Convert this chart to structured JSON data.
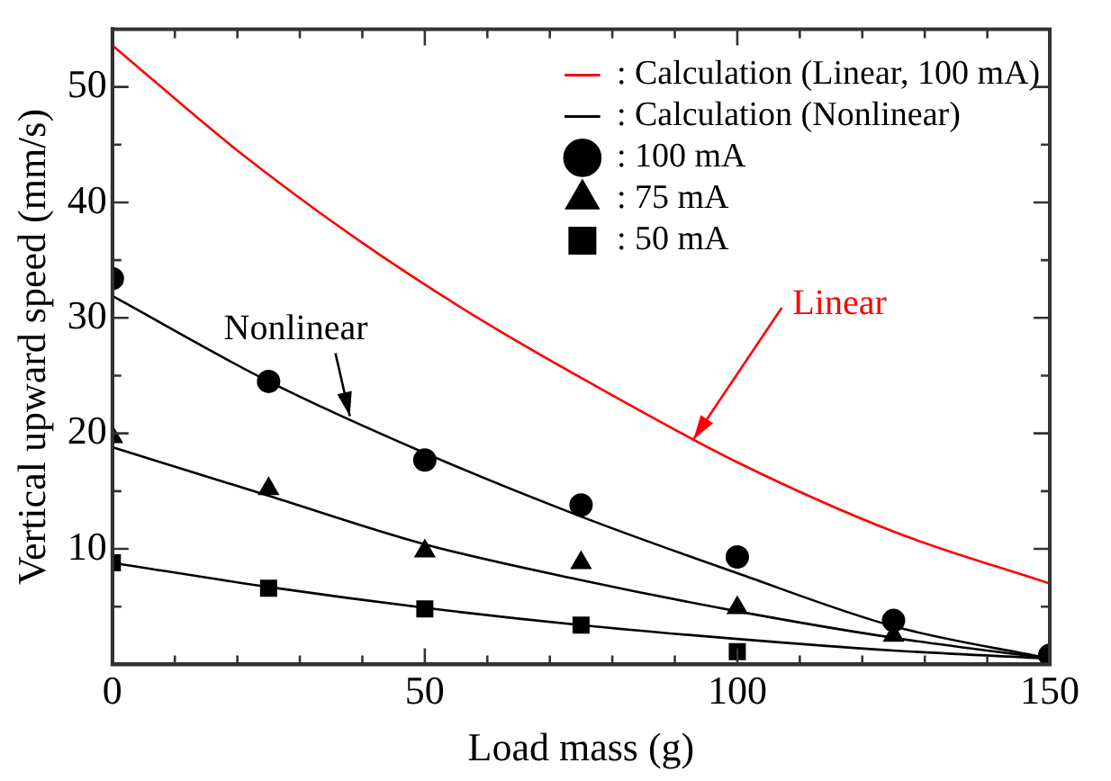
{
  "chart_data": {
    "type": "line",
    "xlabel": "Load mass (g)",
    "ylabel": "Vertical upward speed (mm/s)",
    "xlim": [
      0,
      150
    ],
    "ylim": [
      0,
      55
    ],
    "xticks": [
      0,
      {
        "value": 10,
        "label": null
      },
      {
        "value": 20,
        "label": null
      },
      {
        "value": 30,
        "label": null
      },
      {
        "value": 40,
        "label": null
      },
      50,
      {
        "value": 60,
        "label": null
      },
      {
        "value": 70,
        "label": null
      },
      {
        "value": 80,
        "label": null
      },
      {
        "value": 90,
        "label": null
      },
      100,
      {
        "value": 110,
        "label": null
      },
      {
        "value": 120,
        "label": null
      },
      {
        "value": 130,
        "label": null
      },
      {
        "value": 140,
        "label": null
      },
      150
    ],
    "yticks": [
      {
        "value": 5,
        "label": null
      },
      10,
      {
        "value": 15,
        "label": null
      },
      20,
      {
        "value": 25,
        "label": null
      },
      30,
      {
        "value": 35,
        "label": null
      },
      40,
      {
        "value": 45,
        "label": null
      },
      50
    ],
    "grid": false,
    "legend": "top right",
    "series": [
      {
        "name": ": Calculation (Linear, 100 mA)",
        "color": "#ff0000",
        "marker": "none",
        "x": [
          0,
          20,
          40,
          60,
          80,
          100,
          125,
          150
        ],
        "values": [
          53.6,
          44.5,
          36.5,
          29.5,
          23.3,
          17.5,
          11.5,
          7.0
        ]
      },
      {
        "name": ": Calculation (Nonlinear)",
        "color": "#000000",
        "marker": "none",
        "x": [
          0,
          25,
          50,
          75,
          100,
          125,
          150
        ],
        "values": [
          31.9,
          24.5,
          18.3,
          12.8,
          7.9,
          3.3,
          0.5
        ]
      },
      {
        "color": "#000000",
        "marker": "none",
        "x": [
          0,
          25,
          50,
          75,
          100,
          125,
          150
        ],
        "values": [
          18.8,
          14.6,
          10.4,
          7.3,
          4.6,
          2.3,
          0.5
        ]
      },
      {
        "color": "#000000",
        "marker": "none",
        "x": [
          0,
          25,
          50,
          75,
          100,
          125,
          150
        ],
        "values": [
          8.8,
          6.7,
          4.9,
          3.4,
          2.2,
          1.2,
          0.5
        ]
      },
      {
        "name": ": 100 mA",
        "type": "scatter",
        "color": "#000000",
        "marker": "circle",
        "x": [
          0,
          25,
          50,
          75,
          100,
          125,
          150
        ],
        "values": [
          33.4,
          24.5,
          17.7,
          13.8,
          9.3,
          3.8,
          0.8
        ]
      },
      {
        "name": ": 75 mA",
        "type": "scatter",
        "color": "#000000",
        "marker": "triangle",
        "x": [
          0,
          25,
          50,
          75,
          100,
          125
        ],
        "values": [
          19.7,
          15.2,
          9.8,
          8.8,
          4.9,
          2.5
        ]
      },
      {
        "name": ": 50 mA",
        "type": "scatter",
        "color": "#000000",
        "marker": "square",
        "x": [
          0,
          25,
          50,
          75,
          100
        ],
        "values": [
          8.8,
          6.6,
          4.8,
          3.4,
          1.1
        ]
      }
    ],
    "annotations": [
      {
        "text": "Nonlinear",
        "x": 38,
        "y": 21.5
      },
      {
        "text": "Linear",
        "x": 93,
        "y": 19.5
      }
    ]
  }
}
